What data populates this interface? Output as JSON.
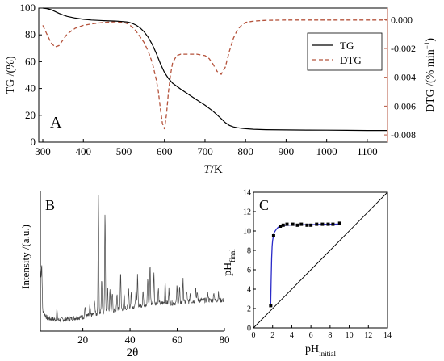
{
  "chart_data": [
    {
      "panel": "A",
      "type": "line",
      "xlabel_italic": "T",
      "xlabel_unit": "/K",
      "ylabel": "TG /(%)",
      "y2label_main": "DTG /(% min",
      "y2label_sup": "−1",
      "y2label_end": ")",
      "xlim": [
        290,
        1150
      ],
      "ylim": [
        0,
        100
      ],
      "y2lim": [
        -0.0085,
        0.0008
      ],
      "xticks": [
        "300",
        "400",
        "500",
        "600",
        "700",
        "800",
        "900",
        "1000",
        "1100"
      ],
      "yticks": [
        "0",
        "20",
        "40",
        "60",
        "80",
        "100"
      ],
      "y2ticks": [
        "-0.008",
        "-0.006",
        "-0.004",
        "-0.002",
        "0.000"
      ],
      "legend_position": "top-right",
      "grid": false,
      "colors": {
        "TG": "#000000",
        "DTG": "#b5533c",
        "right_axis": "#b5533c"
      },
      "series": [
        {
          "name": "TG",
          "axis": "left",
          "style": "solid",
          "x": [
            300,
            310,
            320,
            330,
            340,
            350,
            360,
            380,
            400,
            420,
            450,
            480,
            500,
            510,
            520,
            530,
            540,
            550,
            560,
            570,
            580,
            590,
            600,
            610,
            620,
            640,
            660,
            680,
            700,
            720,
            740,
            750,
            760,
            770,
            780,
            790,
            800,
            820,
            850,
            900,
            950,
            1000,
            1050,
            1100,
            1150
          ],
          "y": [
            100,
            99.6,
            98.8,
            97.5,
            96,
            94.8,
            93.8,
            92.5,
            91.6,
            91.1,
            90.6,
            90.3,
            89.9,
            89.5,
            88.7,
            87.3,
            85.2,
            82.2,
            78.2,
            72.8,
            66,
            58.5,
            52,
            47.5,
            44,
            39.5,
            35.5,
            31.5,
            27.5,
            23,
            17.5,
            14.5,
            12.5,
            11.3,
            10.7,
            10.3,
            10,
            9.6,
            9.3,
            9.1,
            9,
            8.9,
            8.8,
            8.7,
            8.7
          ]
        },
        {
          "name": "DTG",
          "axis": "right",
          "style": "dashed",
          "x": [
            300,
            310,
            320,
            330,
            340,
            350,
            360,
            380,
            400,
            420,
            450,
            480,
            500,
            510,
            520,
            530,
            540,
            550,
            560,
            570,
            580,
            585,
            590,
            595,
            600,
            605,
            610,
            615,
            620,
            630,
            640,
            660,
            680,
            700,
            710,
            720,
            730,
            740,
            750,
            760,
            770,
            780,
            790,
            800,
            820,
            850,
            900,
            950,
            1000,
            1100,
            1150
          ],
          "y": [
            -0.0004,
            -0.001,
            -0.0016,
            -0.0019,
            -0.0018,
            -0.0014,
            -0.001,
            -0.0006,
            -0.0004,
            -0.0003,
            -0.0002,
            -0.00015,
            -0.0002,
            -0.0003,
            -0.0005,
            -0.0008,
            -0.0012,
            -0.0016,
            -0.0022,
            -0.003,
            -0.0042,
            -0.005,
            -0.0062,
            -0.0072,
            -0.0076,
            -0.0066,
            -0.005,
            -0.0038,
            -0.003,
            -0.0025,
            -0.0024,
            -0.0024,
            -0.0024,
            -0.0025,
            -0.0027,
            -0.0031,
            -0.0036,
            -0.0038,
            -0.0033,
            -0.0022,
            -0.0013,
            -0.0007,
            -0.0004,
            -0.0002,
            -0.0001,
            -5e-05,
            -3e-05,
            -3e-05,
            -3e-05,
            -3e-05,
            -3e-05
          ]
        }
      ]
    },
    {
      "panel": "B",
      "type": "line",
      "xlabel": "2θ",
      "ylabel": "Intensity /(a.u.)",
      "xlim": [
        2,
        80
      ],
      "xticks": [
        "20",
        "40",
        "60",
        "80"
      ],
      "yticks_shown": false,
      "grid": false,
      "series": [
        {
          "name": "",
          "baseline": [
            [
              2,
              0.46
            ],
            [
              3,
              0.14
            ],
            [
              5,
              0.09
            ],
            [
              10,
              0.08
            ],
            [
              20,
              0.1
            ],
            [
              30,
              0.14
            ],
            [
              40,
              0.17
            ],
            [
              50,
              0.2
            ],
            [
              60,
              0.2
            ],
            [
              70,
              0.22
            ],
            [
              80,
              0.22
            ]
          ],
          "peaks": [
            [
              2.6,
              0.2
            ],
            [
              9,
              0.07
            ],
            [
              20.9,
              0.07
            ],
            [
              23,
              0.07
            ],
            [
              25,
              0.1
            ],
            [
              26.6,
              0.84
            ],
            [
              28,
              0.24
            ],
            [
              29.4,
              0.72
            ],
            [
              30.5,
              0.18
            ],
            [
              31.5,
              0.16
            ],
            [
              32.5,
              0.12
            ],
            [
              34.5,
              0.1
            ],
            [
              36,
              0.26
            ],
            [
              37.5,
              0.1
            ],
            [
              39.4,
              0.14
            ],
            [
              40.5,
              0.1
            ],
            [
              42.5,
              0.12
            ],
            [
              43.2,
              0.22
            ],
            [
              45.5,
              0.1
            ],
            [
              47.5,
              0.18
            ],
            [
              48.5,
              0.28
            ],
            [
              50.1,
              0.22
            ],
            [
              52,
              0.1
            ],
            [
              54.9,
              0.16
            ],
            [
              56.5,
              0.1
            ],
            [
              59.9,
              0.12
            ],
            [
              61,
              0.1
            ],
            [
              62.5,
              0.16
            ],
            [
              64,
              0.08
            ],
            [
              65.5,
              0.06
            ],
            [
              67.8,
              0.1
            ],
            [
              68.5,
              0.06
            ],
            [
              73,
              0.05
            ],
            [
              75.5,
              0.06
            ],
            [
              77.5,
              0.05
            ]
          ]
        }
      ]
    },
    {
      "panel": "C",
      "type": "scatter",
      "xlabel_main": "pH",
      "xlabel_sub": "initial",
      "ylabel_main": "pH",
      "ylabel_sub": "final",
      "xlim": [
        0,
        14
      ],
      "ylim": [
        0,
        14
      ],
      "xticks": [
        "0",
        "2",
        "4",
        "6",
        "8",
        "10",
        "12",
        "14"
      ],
      "yticks": [
        "0",
        "2",
        "4",
        "6",
        "8",
        "10",
        "12",
        "14"
      ],
      "grid": false,
      "colors": {
        "points": "#000000",
        "fit": "#2a2ac8",
        "reference": "#000000"
      },
      "series": [
        {
          "name": "",
          "kind": "points",
          "x": [
            1.8,
            2.1,
            2.8,
            3.1,
            3.5,
            4.1,
            4.6,
            5.0,
            5.6,
            6.0,
            6.6,
            7.2,
            7.8,
            8.3,
            9.0
          ],
          "y": [
            2.3,
            9.5,
            10.5,
            10.6,
            10.7,
            10.7,
            10.6,
            10.7,
            10.6,
            10.6,
            10.7,
            10.7,
            10.7,
            10.7,
            10.8
          ]
        },
        {
          "name": "",
          "kind": "fit",
          "x": [
            1.8,
            1.85,
            1.9,
            1.95,
            2.0,
            2.1,
            2.2,
            2.4,
            2.6,
            2.8,
            3.0,
            3.5,
            4.0,
            5.0,
            6.0,
            7.0,
            8.0,
            9.0
          ],
          "y": [
            2.3,
            5.0,
            7.2,
            8.4,
            9.0,
            9.6,
            9.9,
            10.2,
            10.4,
            10.5,
            10.55,
            10.6,
            10.62,
            10.64,
            10.66,
            10.68,
            10.7,
            10.72
          ]
        },
        {
          "name": "",
          "kind": "reference",
          "x": [
            0,
            14
          ],
          "y": [
            0,
            14
          ]
        }
      ]
    }
  ],
  "labels": {
    "A": "A",
    "B": "B",
    "C": "C"
  }
}
